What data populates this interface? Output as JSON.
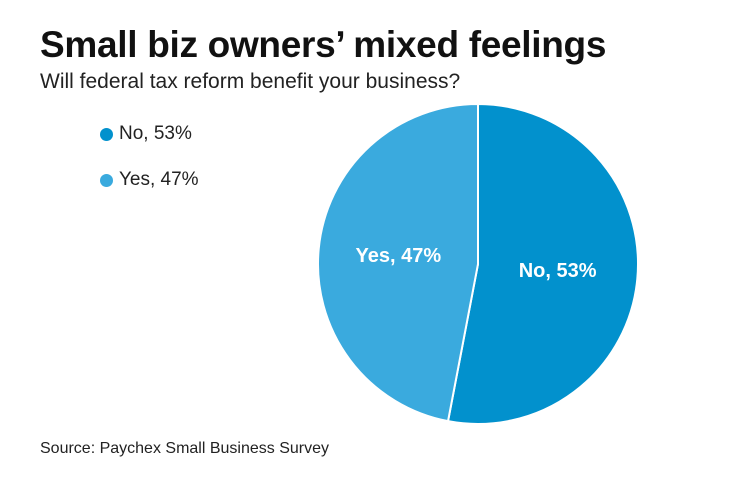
{
  "title": "Small biz owners’ mixed feelings",
  "subtitle": "Will federal tax reform benefit your business?",
  "legend": [
    {
      "label": "No, 53%",
      "color": "#0291cd"
    },
    {
      "label": "Yes, 47%",
      "color": "#3aaade"
    }
  ],
  "source": "Source: Paychex Small Business Survey",
  "chart_data": {
    "type": "pie",
    "title": "Small biz owners’ mixed feelings",
    "subtitle": "Will federal tax reform benefit your business?",
    "slices": [
      {
        "label": "No",
        "value": 53,
        "display": "No, 53%",
        "color": "#0291cd"
      },
      {
        "label": "Yes",
        "value": 47,
        "display": "Yes, 47%",
        "color": "#3aaade"
      }
    ],
    "legend_position": "top-left"
  }
}
